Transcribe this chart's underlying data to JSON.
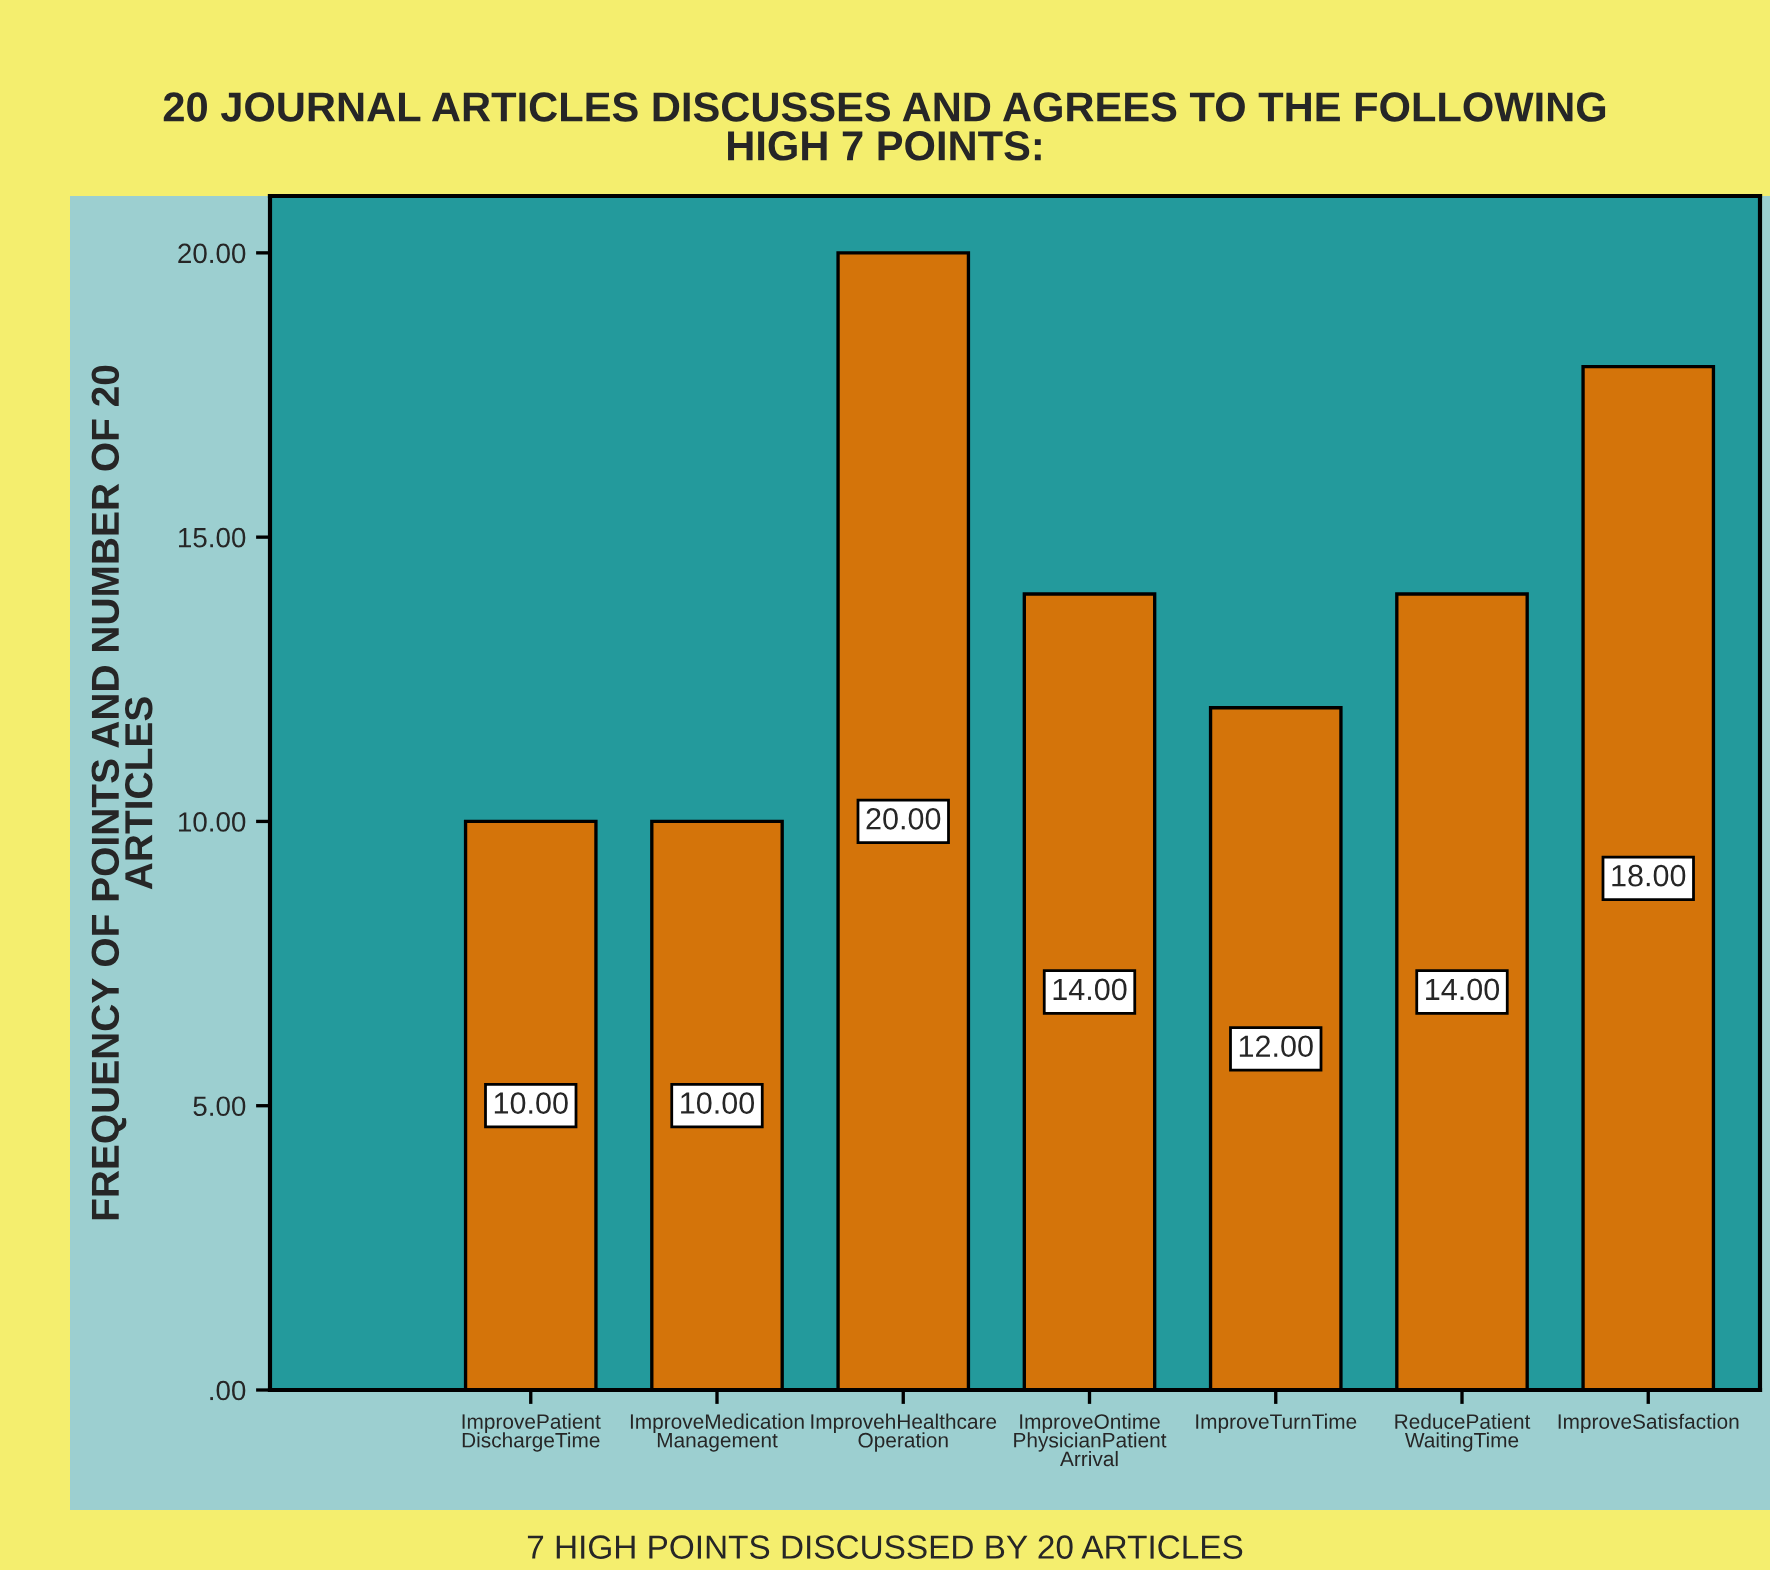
{
  "chart_data": {
    "type": "bar",
    "title": "20 JOURNAL ARTICLES DISCUSSES AND AGREES TO THE FOLLOWING\nHIGH 7 POINTS:",
    "xlabel": "7 HIGH POINTS DISCUSSED BY 20 ARTICLES",
    "ylabel": "FREQUENCY OF POINTS AND NUMBER OF 20\nARTICLES",
    "categories": [
      "ImprovePatient\nDischargeTime",
      "ImproveMedication\nManagement",
      "ImprovehHealthcare\nOperation",
      "ImproveOntime\nPhysicianPatient\nArrival",
      "ImproveTurnTime",
      "ReducePatient\nWaitingTime",
      "ImproveSatisfaction"
    ],
    "values": [
      10,
      10,
      20,
      14,
      12,
      14,
      18
    ],
    "value_labels": [
      "10.00",
      "10.00",
      "20.00",
      "14.00",
      "12.00",
      "14.00",
      "18.00"
    ],
    "color": "#d4740a",
    "ylim": [
      0,
      21
    ],
    "yticks": [
      {
        "value": 0,
        "label": ".00"
      },
      {
        "value": 5,
        "label": "5.00"
      },
      {
        "value": 10,
        "label": "10.00"
      },
      {
        "value": 15,
        "label": "15.00"
      },
      {
        "value": 20,
        "label": "20.00"
      }
    ],
    "grid": false,
    "legend": false
  }
}
